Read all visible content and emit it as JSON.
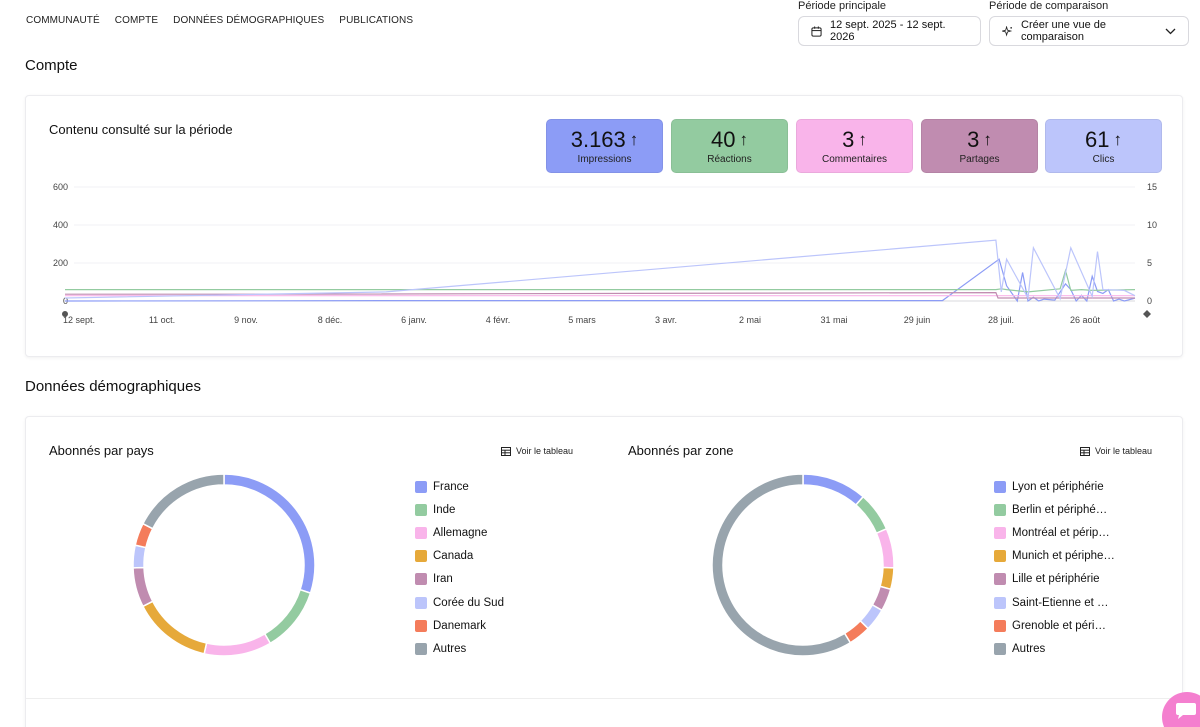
{
  "nav": {
    "items": [
      "COMMUNAUTÉ",
      "COMPTE",
      "DONNÉES DÉMOGRAPHIQUES",
      "PUBLICATIONS"
    ]
  },
  "period": {
    "main_label": "Période principale",
    "main_value": "12 sept. 2025 - 12 sept. 2026",
    "compare_label": "Période de comparaison",
    "compare_value": "Créer une vue de comparaison"
  },
  "sections": {
    "account": "Compte",
    "demographics": "Données démographiques"
  },
  "content_card": {
    "title": "Contenu consulté sur la période",
    "metrics": [
      {
        "value": "3.163",
        "label": "Impressions",
        "color": "#8c9cf6"
      },
      {
        "value": "40",
        "label": "Réactions",
        "color": "#93cba0"
      },
      {
        "value": "3",
        "label": "Commentaires",
        "color": "#f9b4ea"
      },
      {
        "value": "3",
        "label": "Partages",
        "color": "#c08cb0"
      },
      {
        "value": "61",
        "label": "Clics",
        "color": "#bcc5fb"
      }
    ],
    "arrow": "↑"
  },
  "chart_data": [
    {
      "type": "line",
      "y_left_ticks": [
        "600",
        "400",
        "200",
        "0"
      ],
      "y_right_ticks": [
        "15",
        "10",
        "5",
        "0"
      ],
      "ylim_left": [
        0,
        600
      ],
      "ylim_right": [
        0,
        15
      ],
      "x_ticks": [
        "12 sept.",
        "11 oct.",
        "9 nov.",
        "8 déc.",
        "6 janv.",
        "4 févr.",
        "5 mars",
        "3 avr.",
        "2 mai",
        "31 mai",
        "29 juin",
        "28 juil.",
        "26 août"
      ],
      "series": [
        {
          "color": "#8c9cf6",
          "axis": "left",
          "t": [
            0,
            0.35,
            0.82,
            0.873,
            0.88,
            0.89,
            0.895,
            0.9,
            0.905,
            0.91,
            0.915,
            0.925,
            0.935,
            0.94,
            0.945,
            0.95,
            0.955,
            0.96,
            0.965,
            0.97,
            0.975,
            0.98,
            0.985,
            0.99,
            1
          ],
          "v": [
            0,
            2,
            2,
            220,
            80,
            0,
            150,
            0,
            20,
            0,
            10,
            5,
            90,
            60,
            0,
            30,
            0,
            130,
            50,
            40,
            60,
            0,
            10,
            0,
            15
          ]
        },
        {
          "color": "#93cba0",
          "axis": "right",
          "t": [
            0,
            0.2,
            0.87,
            0.875,
            0.88,
            0.9,
            0.93,
            0.935,
            0.94,
            0.95,
            0.96,
            1
          ],
          "v": [
            1.5,
            1.5,
            1.5,
            1.6,
            1.5,
            1.2,
            1.6,
            4,
            1.4,
            1.5,
            1.4,
            1.5
          ]
        },
        {
          "color": "#f9b4ea",
          "axis": "right",
          "t": [
            0,
            0.87,
            0.92,
            1
          ],
          "v": [
            0.7,
            0.7,
            0.7,
            0.7
          ]
        },
        {
          "color": "#c08cb0",
          "axis": "right",
          "t": [
            0,
            0.2,
            0.87,
            0.872,
            1
          ],
          "v": [
            0.9,
            0.9,
            1.1,
            0.4,
            0.4
          ]
        },
        {
          "color": "#bcc5fb",
          "axis": "right",
          "t": [
            0,
            0.3,
            0.87,
            0.875,
            0.88,
            0.9,
            0.905,
            0.93,
            0.94,
            0.96,
            0.965,
            0.97,
            0.99,
            1
          ],
          "v": [
            0.4,
            1.2,
            8,
            1.2,
            5.5,
            0.4,
            7,
            0.3,
            7,
            0.6,
            6.5,
            1.5,
            1.4,
            0.7
          ]
        }
      ]
    },
    {
      "type": "pie",
      "title": "Abonnés par pays",
      "categories": [
        "France",
        "Inde",
        "Allemagne",
        "Canada",
        "Iran",
        "Corée du Sud",
        "Danemark",
        "Autres"
      ],
      "values": [
        30,
        11.5,
        12,
        14,
        7,
        4,
        4,
        17.5
      ],
      "colors": [
        "#8c9cf6",
        "#93cba0",
        "#f9b4ea",
        "#e6a93a",
        "#c08cb0",
        "#bcc5fb",
        "#f47c5b",
        "#98a4ad"
      ]
    },
    {
      "type": "pie",
      "title": "Abonnés par zone",
      "categories": [
        "Lyon et périphérie",
        "Berlin et périphé…",
        "Montréal et périp…",
        "Munich et périphe…",
        "Lille et périphérie",
        "Saint-Etienne et …",
        "Grenoble et péri…",
        "Autres"
      ],
      "values": [
        11.5,
        7,
        7,
        3.8,
        4,
        4,
        4,
        58.7
      ],
      "colors": [
        "#8c9cf6",
        "#93cba0",
        "#f9b4ea",
        "#e6a93a",
        "#c08cb0",
        "#bcc5fb",
        "#f47c5b",
        "#98a4ad"
      ]
    }
  ],
  "demo": {
    "view_table": "Voir le tableau"
  }
}
